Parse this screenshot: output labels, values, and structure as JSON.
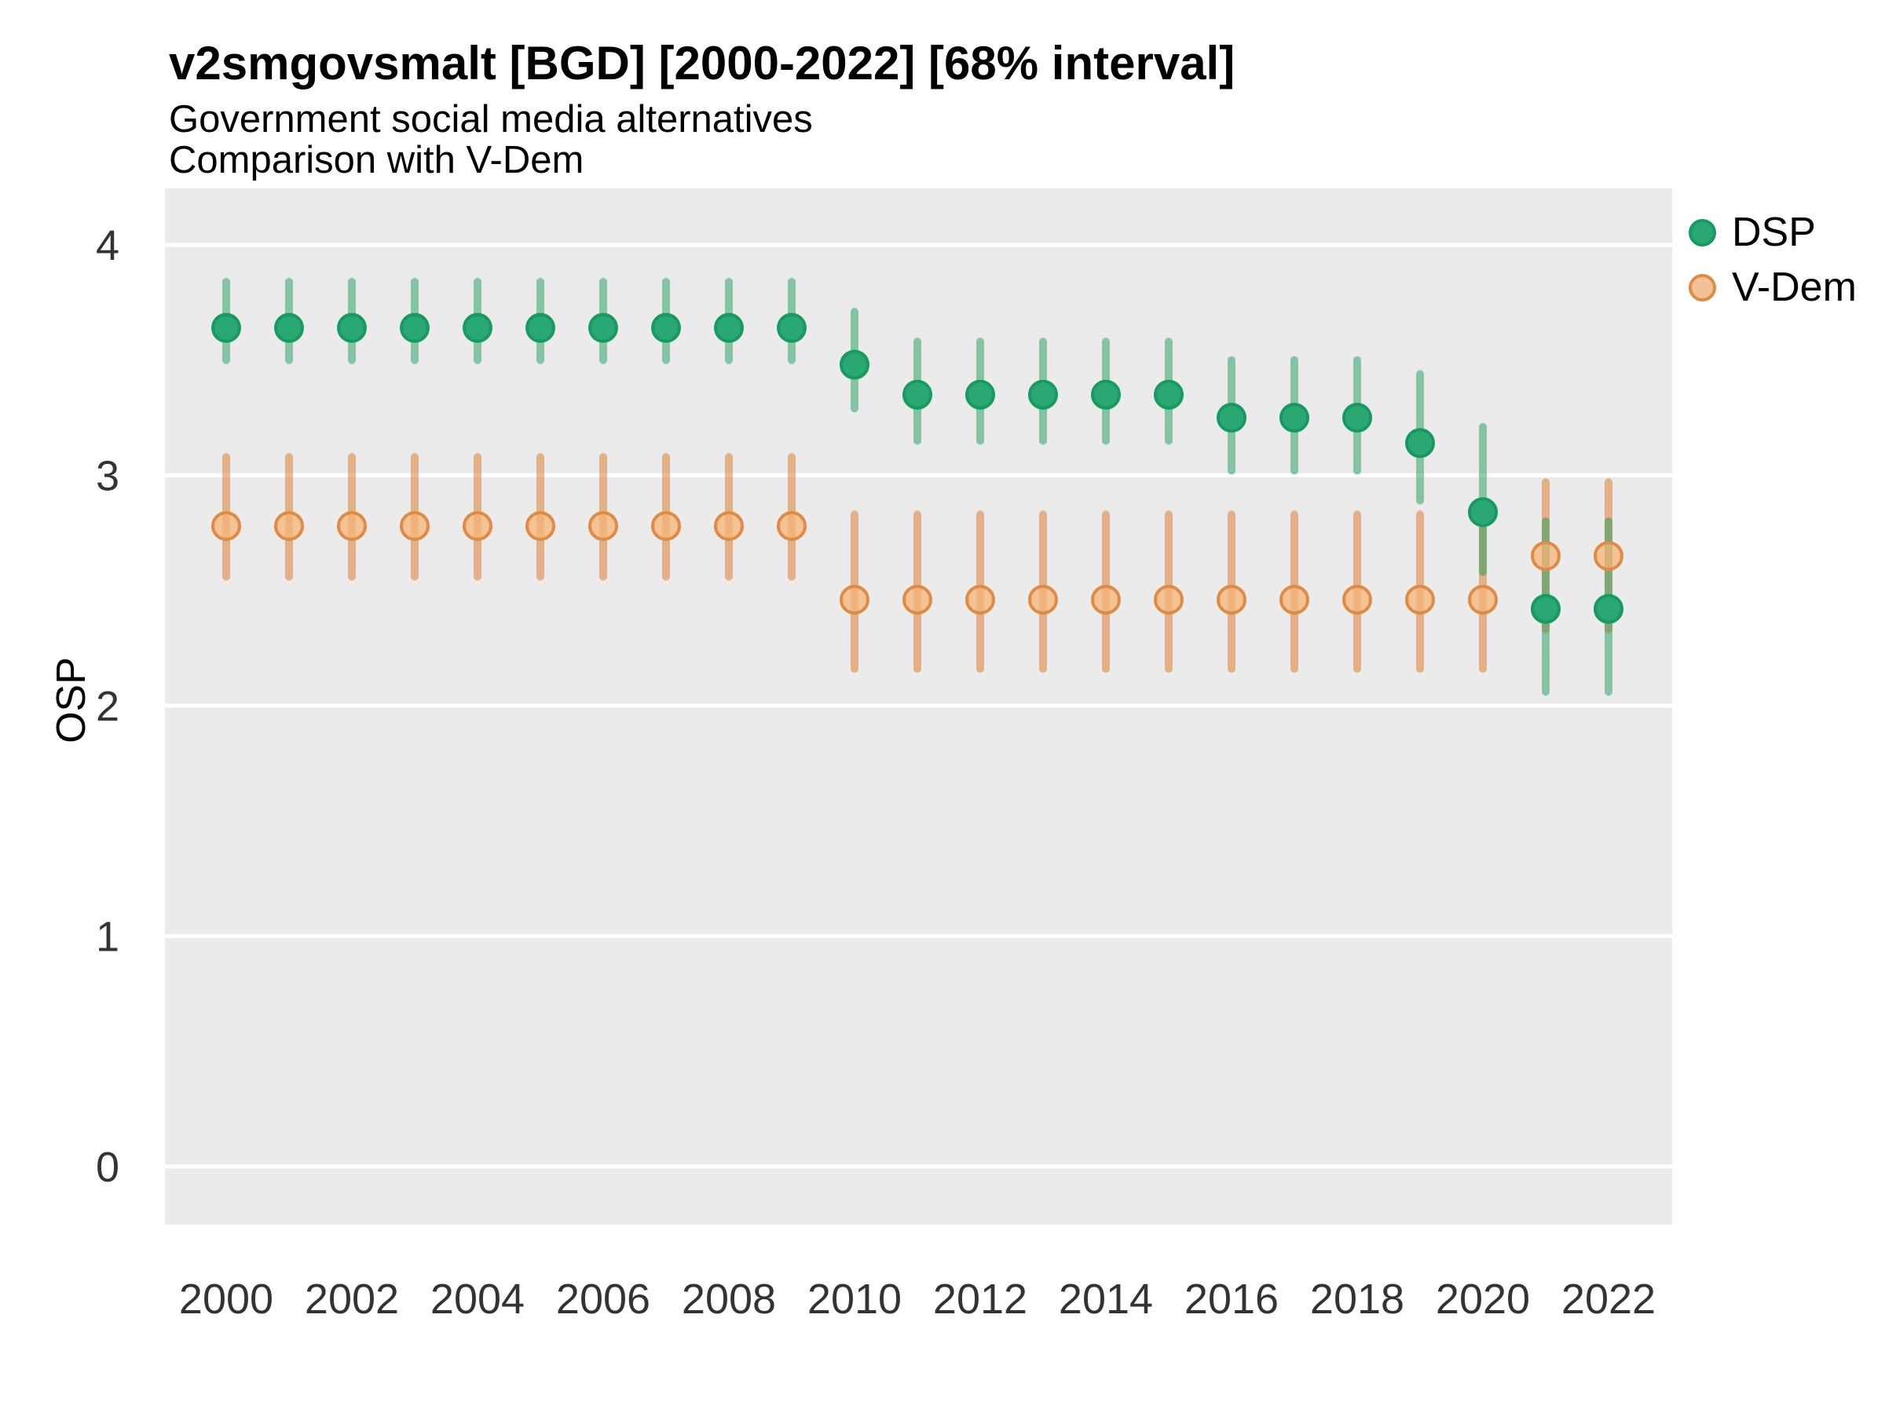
{
  "chart_data": {
    "type": "pointrange",
    "title": "v2smgovsmalt [BGD] [2000-2022] [68% interval]",
    "subtitle_lines": [
      "Government social media alternatives",
      "Comparison with V-Dem"
    ],
    "ylabel": "OSP",
    "xlabel": "",
    "interval": "68% interval",
    "country": "BGD",
    "variable": "v2smgovsmalt",
    "grid": "horizontal major gridlines, white on gray panel",
    "legend_position": "top-right outside panel",
    "ylim": [
      -0.25,
      4.25
    ],
    "xlim": [
      1999,
      2023
    ],
    "yticks": [
      4,
      3,
      2,
      1,
      0
    ],
    "xticks": [
      2000,
      2002,
      2004,
      2006,
      2008,
      2010,
      2012,
      2014,
      2016,
      2018,
      2020,
      2022
    ],
    "years": [
      2000,
      2001,
      2002,
      2003,
      2004,
      2005,
      2006,
      2007,
      2008,
      2009,
      2010,
      2011,
      2012,
      2013,
      2014,
      2015,
      2016,
      2017,
      2018,
      2019,
      2020,
      2021,
      2022
    ],
    "series": [
      {
        "name": "V-Dem",
        "bar_color": "rgba(223,138,66,0.6)",
        "point_fill": "rgba(245,180,120,0.75)",
        "point_stroke": "#DF8B44",
        "legend_fill": "#F2C296",
        "est": [
          2.78,
          2.78,
          2.78,
          2.78,
          2.78,
          2.78,
          2.78,
          2.78,
          2.78,
          2.78,
          2.46,
          2.46,
          2.46,
          2.46,
          2.46,
          2.46,
          2.46,
          2.46,
          2.46,
          2.46,
          2.46,
          2.65,
          2.65
        ],
        "lo": [
          2.56,
          2.56,
          2.56,
          2.56,
          2.56,
          2.56,
          2.56,
          2.56,
          2.56,
          2.56,
          2.16,
          2.16,
          2.16,
          2.16,
          2.16,
          2.16,
          2.16,
          2.16,
          2.16,
          2.16,
          2.16,
          2.33,
          2.33
        ],
        "hi": [
          3.08,
          3.08,
          3.08,
          3.08,
          3.08,
          3.08,
          3.08,
          3.08,
          3.08,
          3.08,
          2.83,
          2.83,
          2.83,
          2.83,
          2.83,
          2.83,
          2.83,
          2.83,
          2.83,
          2.83,
          2.83,
          2.97,
          2.97
        ]
      },
      {
        "name": "DSP",
        "bar_color": "rgba(27,158,95,0.5)",
        "point_fill": "#2AA873",
        "point_stroke": "#179A5E",
        "legend_fill": "#2AA873",
        "est": [
          3.64,
          3.64,
          3.64,
          3.64,
          3.64,
          3.64,
          3.64,
          3.64,
          3.64,
          3.64,
          3.48,
          3.35,
          3.35,
          3.35,
          3.35,
          3.35,
          3.25,
          3.25,
          3.25,
          3.14,
          2.84,
          2.42,
          2.42
        ],
        "lo": [
          3.5,
          3.5,
          3.5,
          3.5,
          3.5,
          3.5,
          3.5,
          3.5,
          3.5,
          3.5,
          3.29,
          3.15,
          3.15,
          3.15,
          3.15,
          3.15,
          3.02,
          3.02,
          3.02,
          2.89,
          2.58,
          2.06,
          2.06
        ],
        "hi": [
          3.84,
          3.84,
          3.84,
          3.84,
          3.84,
          3.84,
          3.84,
          3.84,
          3.84,
          3.84,
          3.71,
          3.58,
          3.58,
          3.58,
          3.58,
          3.58,
          3.5,
          3.5,
          3.5,
          3.44,
          3.21,
          2.8,
          2.8
        ]
      }
    ],
    "legend_order": [
      "DSP",
      "V-Dem"
    ]
  }
}
